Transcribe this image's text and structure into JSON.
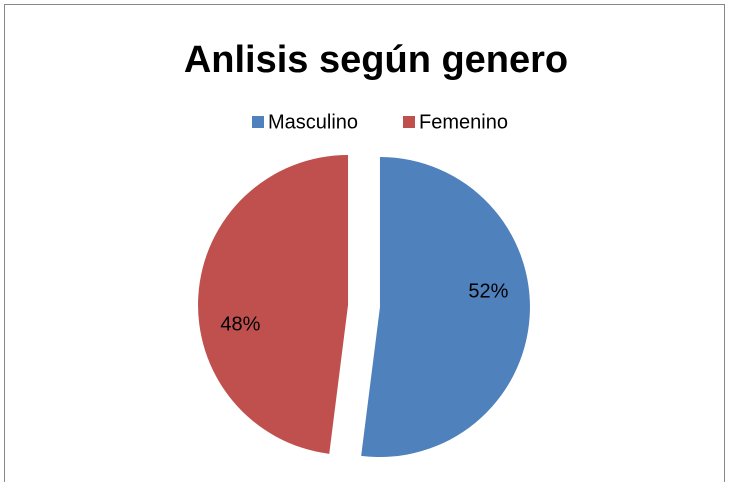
{
  "chart_data": {
    "type": "pie",
    "title": "Anlisis según genero",
    "categories": [
      "Masculino",
      "Femenino"
    ],
    "values": [
      52,
      48
    ],
    "value_labels": [
      "52%",
      "48%"
    ],
    "colors": [
      "#4f81bd",
      "#c0504d"
    ],
    "legend": "top"
  }
}
